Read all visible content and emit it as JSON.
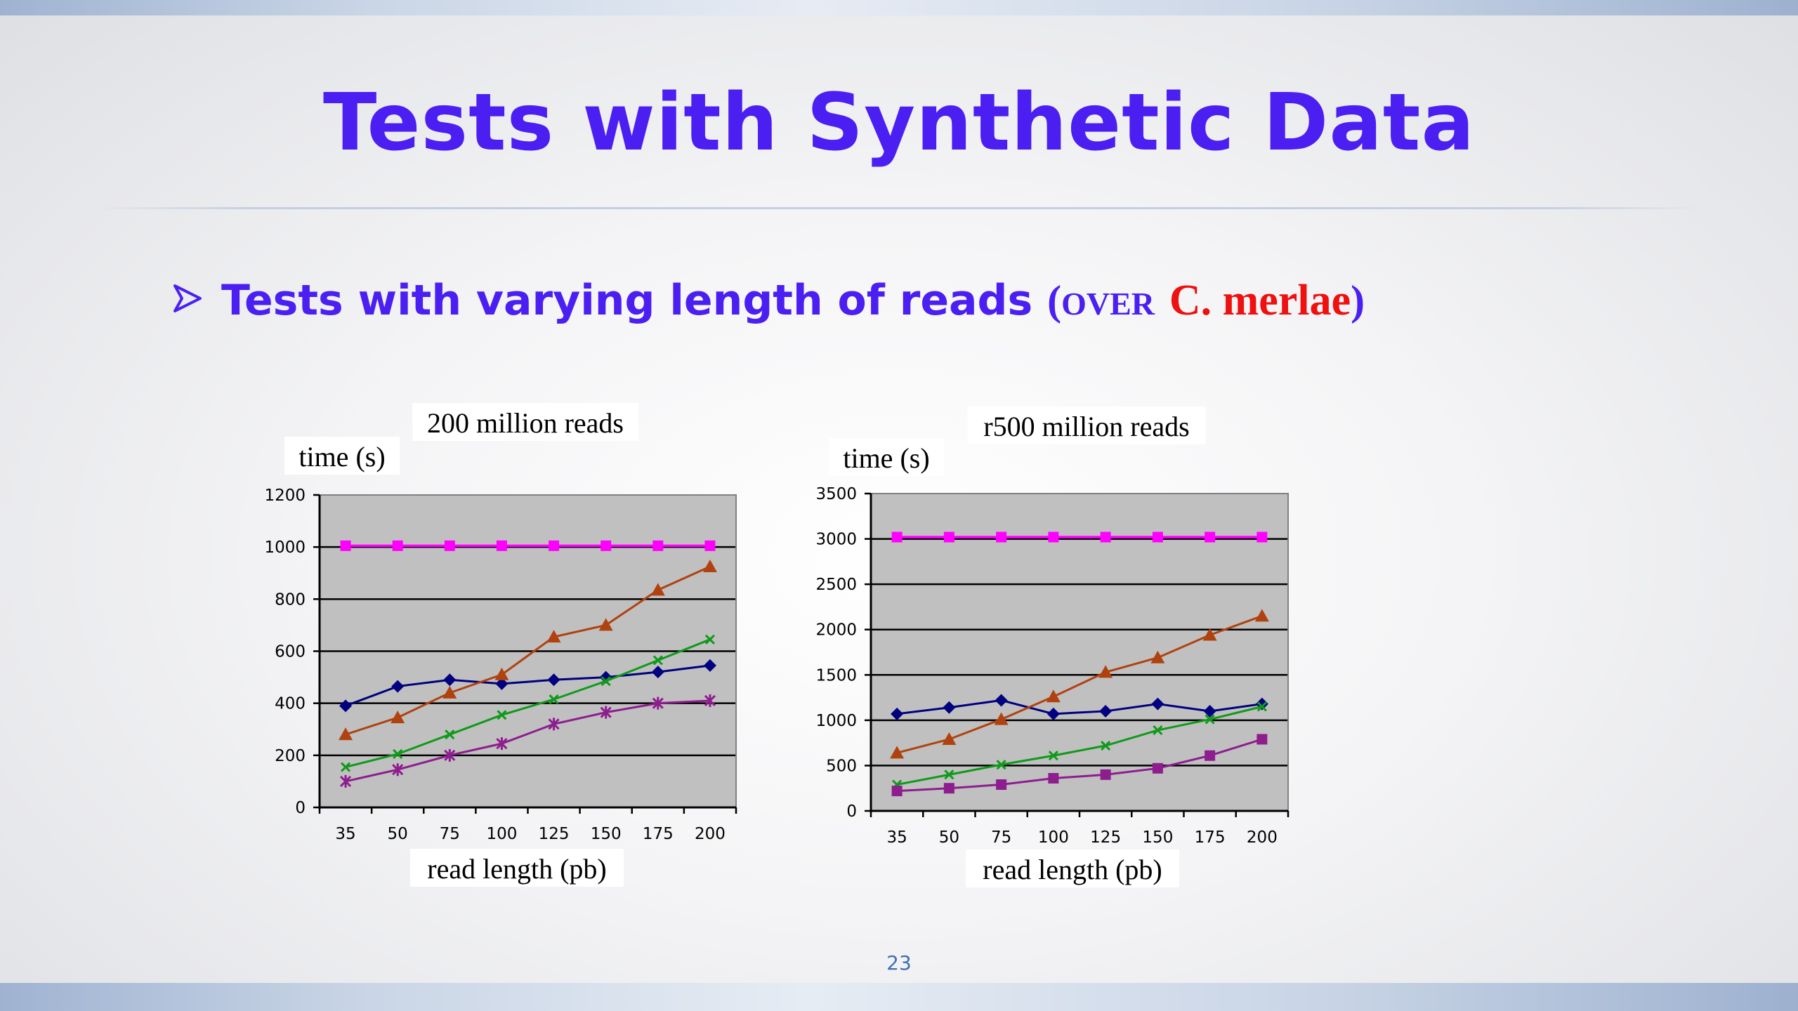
{
  "slide": {
    "title": "Tests with Synthetic Data",
    "bullet_main": "Tests with varying length of reads",
    "bullet_open": "(",
    "bullet_over": "OVER",
    "bullet_species": "C. merlae",
    "bullet_close": ")",
    "page_number": "23"
  },
  "colors": {
    "title": "#4b1ff2",
    "species": "#ef1010",
    "plot_bg": "#c0c0c0",
    "series": [
      "#000080",
      "#ff00ff",
      "#b0420f",
      "#0f9a1a",
      "#8e1d8e"
    ]
  },
  "chart_data": [
    {
      "type": "line",
      "title": "200 million reads",
      "xlabel": "read length (pb)",
      "ylabel": "time (s)",
      "categories": [
        "35",
        "50",
        "75",
        "100",
        "125",
        "150",
        "175",
        "200"
      ],
      "ylim": [
        0,
        1200
      ],
      "yticks": [
        "0",
        "200",
        "400",
        "600",
        "800",
        "1000",
        "1200"
      ],
      "grid": true,
      "series": [
        {
          "marker": "diamond",
          "values": [
            390,
            465,
            490,
            475,
            490,
            500,
            520,
            545
          ]
        },
        {
          "marker": "square",
          "values": [
            1005,
            1005,
            1005,
            1005,
            1005,
            1005,
            1005,
            1005
          ]
        },
        {
          "marker": "triangle",
          "values": [
            280,
            345,
            440,
            510,
            655,
            700,
            835,
            925
          ]
        },
        {
          "marker": "x",
          "values": [
            155,
            205,
            280,
            355,
            415,
            485,
            565,
            645
          ]
        },
        {
          "marker": "star",
          "values": [
            100,
            145,
            200,
            245,
            320,
            365,
            400,
            410
          ]
        }
      ]
    },
    {
      "type": "line",
      "title": "r500 million reads",
      "xlabel": "read length (pb)",
      "ylabel": "time (s)",
      "categories": [
        "35",
        "50",
        "75",
        "100",
        "125",
        "150",
        "175",
        "200"
      ],
      "ylim": [
        0,
        3500
      ],
      "yticks": [
        "0",
        "500",
        "1000",
        "1500",
        "2000",
        "2500",
        "3000",
        "3500"
      ],
      "grid": true,
      "series": [
        {
          "marker": "diamond",
          "values": [
            1070,
            1140,
            1220,
            1070,
            1100,
            1180,
            1100,
            1180
          ]
        },
        {
          "marker": "square",
          "values": [
            3020,
            3020,
            3020,
            3020,
            3020,
            3020,
            3020,
            3020
          ]
        },
        {
          "marker": "triangle",
          "values": [
            640,
            790,
            1010,
            1260,
            1530,
            1690,
            1940,
            2150
          ]
        },
        {
          "marker": "x",
          "values": [
            290,
            400,
            510,
            610,
            720,
            890,
            1010,
            1150
          ]
        },
        {
          "marker": "square",
          "values": [
            220,
            250,
            290,
            360,
            400,
            470,
            610,
            790
          ]
        }
      ]
    }
  ]
}
